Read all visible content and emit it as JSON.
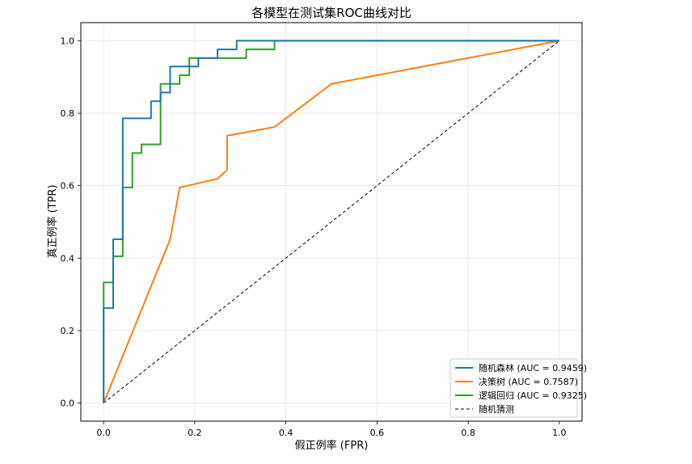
{
  "chart_data": {
    "type": "line",
    "title": "各模型在测试集ROC曲线对比",
    "xlabel": "假正例率 (FPR)",
    "ylabel": "真正例率 (TPR)",
    "xlim": [
      -0.05,
      1.05
    ],
    "ylim": [
      -0.05,
      1.05
    ],
    "xticks": [
      0.0,
      0.2,
      0.4,
      0.6,
      0.8,
      1.0
    ],
    "yticks": [
      0.0,
      0.2,
      0.4,
      0.6,
      0.8,
      1.0
    ],
    "xtick_labels": [
      "0.0",
      "0.2",
      "0.4",
      "0.6",
      "0.8",
      "1.0"
    ],
    "ytick_labels": [
      "0.0",
      "0.2",
      "0.4",
      "0.6",
      "0.8",
      "1.0"
    ],
    "grid": true,
    "legend_position": "lower-right",
    "series": [
      {
        "name": "随机森林 (AUC = 0.9459)",
        "color": "#1f77b4",
        "style": "solid",
        "points": [
          [
            0,
            0
          ],
          [
            0,
            0.262
          ],
          [
            0.021,
            0.262
          ],
          [
            0.021,
            0.452
          ],
          [
            0.042,
            0.452
          ],
          [
            0.042,
            0.786
          ],
          [
            0.104,
            0.786
          ],
          [
            0.104,
            0.833
          ],
          [
            0.125,
            0.833
          ],
          [
            0.125,
            0.857
          ],
          [
            0.146,
            0.857
          ],
          [
            0.146,
            0.929
          ],
          [
            0.208,
            0.929
          ],
          [
            0.208,
            0.952
          ],
          [
            0.25,
            0.952
          ],
          [
            0.25,
            0.976
          ],
          [
            0.292,
            0.976
          ],
          [
            0.292,
            1.0
          ],
          [
            1.0,
            1.0
          ]
        ]
      },
      {
        "name": "决策树 (AUC = 0.7587)",
        "color": "#ff7f0e",
        "style": "solid",
        "points": [
          [
            0,
            0
          ],
          [
            0.146,
            0.452
          ],
          [
            0.167,
            0.595
          ],
          [
            0.25,
            0.619
          ],
          [
            0.271,
            0.643
          ],
          [
            0.271,
            0.738
          ],
          [
            0.375,
            0.762
          ],
          [
            0.5,
            0.881
          ],
          [
            1.0,
            1.0
          ]
        ]
      },
      {
        "name": "逻辑回归 (AUC = 0.9325)",
        "color": "#2ca02c",
        "style": "solid",
        "points": [
          [
            0,
            0
          ],
          [
            0,
            0.333
          ],
          [
            0.021,
            0.333
          ],
          [
            0.021,
            0.405
          ],
          [
            0.042,
            0.405
          ],
          [
            0.042,
            0.595
          ],
          [
            0.063,
            0.595
          ],
          [
            0.063,
            0.69
          ],
          [
            0.083,
            0.69
          ],
          [
            0.083,
            0.714
          ],
          [
            0.125,
            0.714
          ],
          [
            0.125,
            0.881
          ],
          [
            0.167,
            0.881
          ],
          [
            0.167,
            0.905
          ],
          [
            0.188,
            0.905
          ],
          [
            0.188,
            0.952
          ],
          [
            0.313,
            0.952
          ],
          [
            0.313,
            0.976
          ],
          [
            0.375,
            0.976
          ],
          [
            0.375,
            1.0
          ],
          [
            1.0,
            1.0
          ]
        ]
      },
      {
        "name": "随机猜测",
        "color": "#000000",
        "style": "dashed",
        "points": [
          [
            0,
            0
          ],
          [
            1,
            1
          ]
        ]
      }
    ]
  }
}
